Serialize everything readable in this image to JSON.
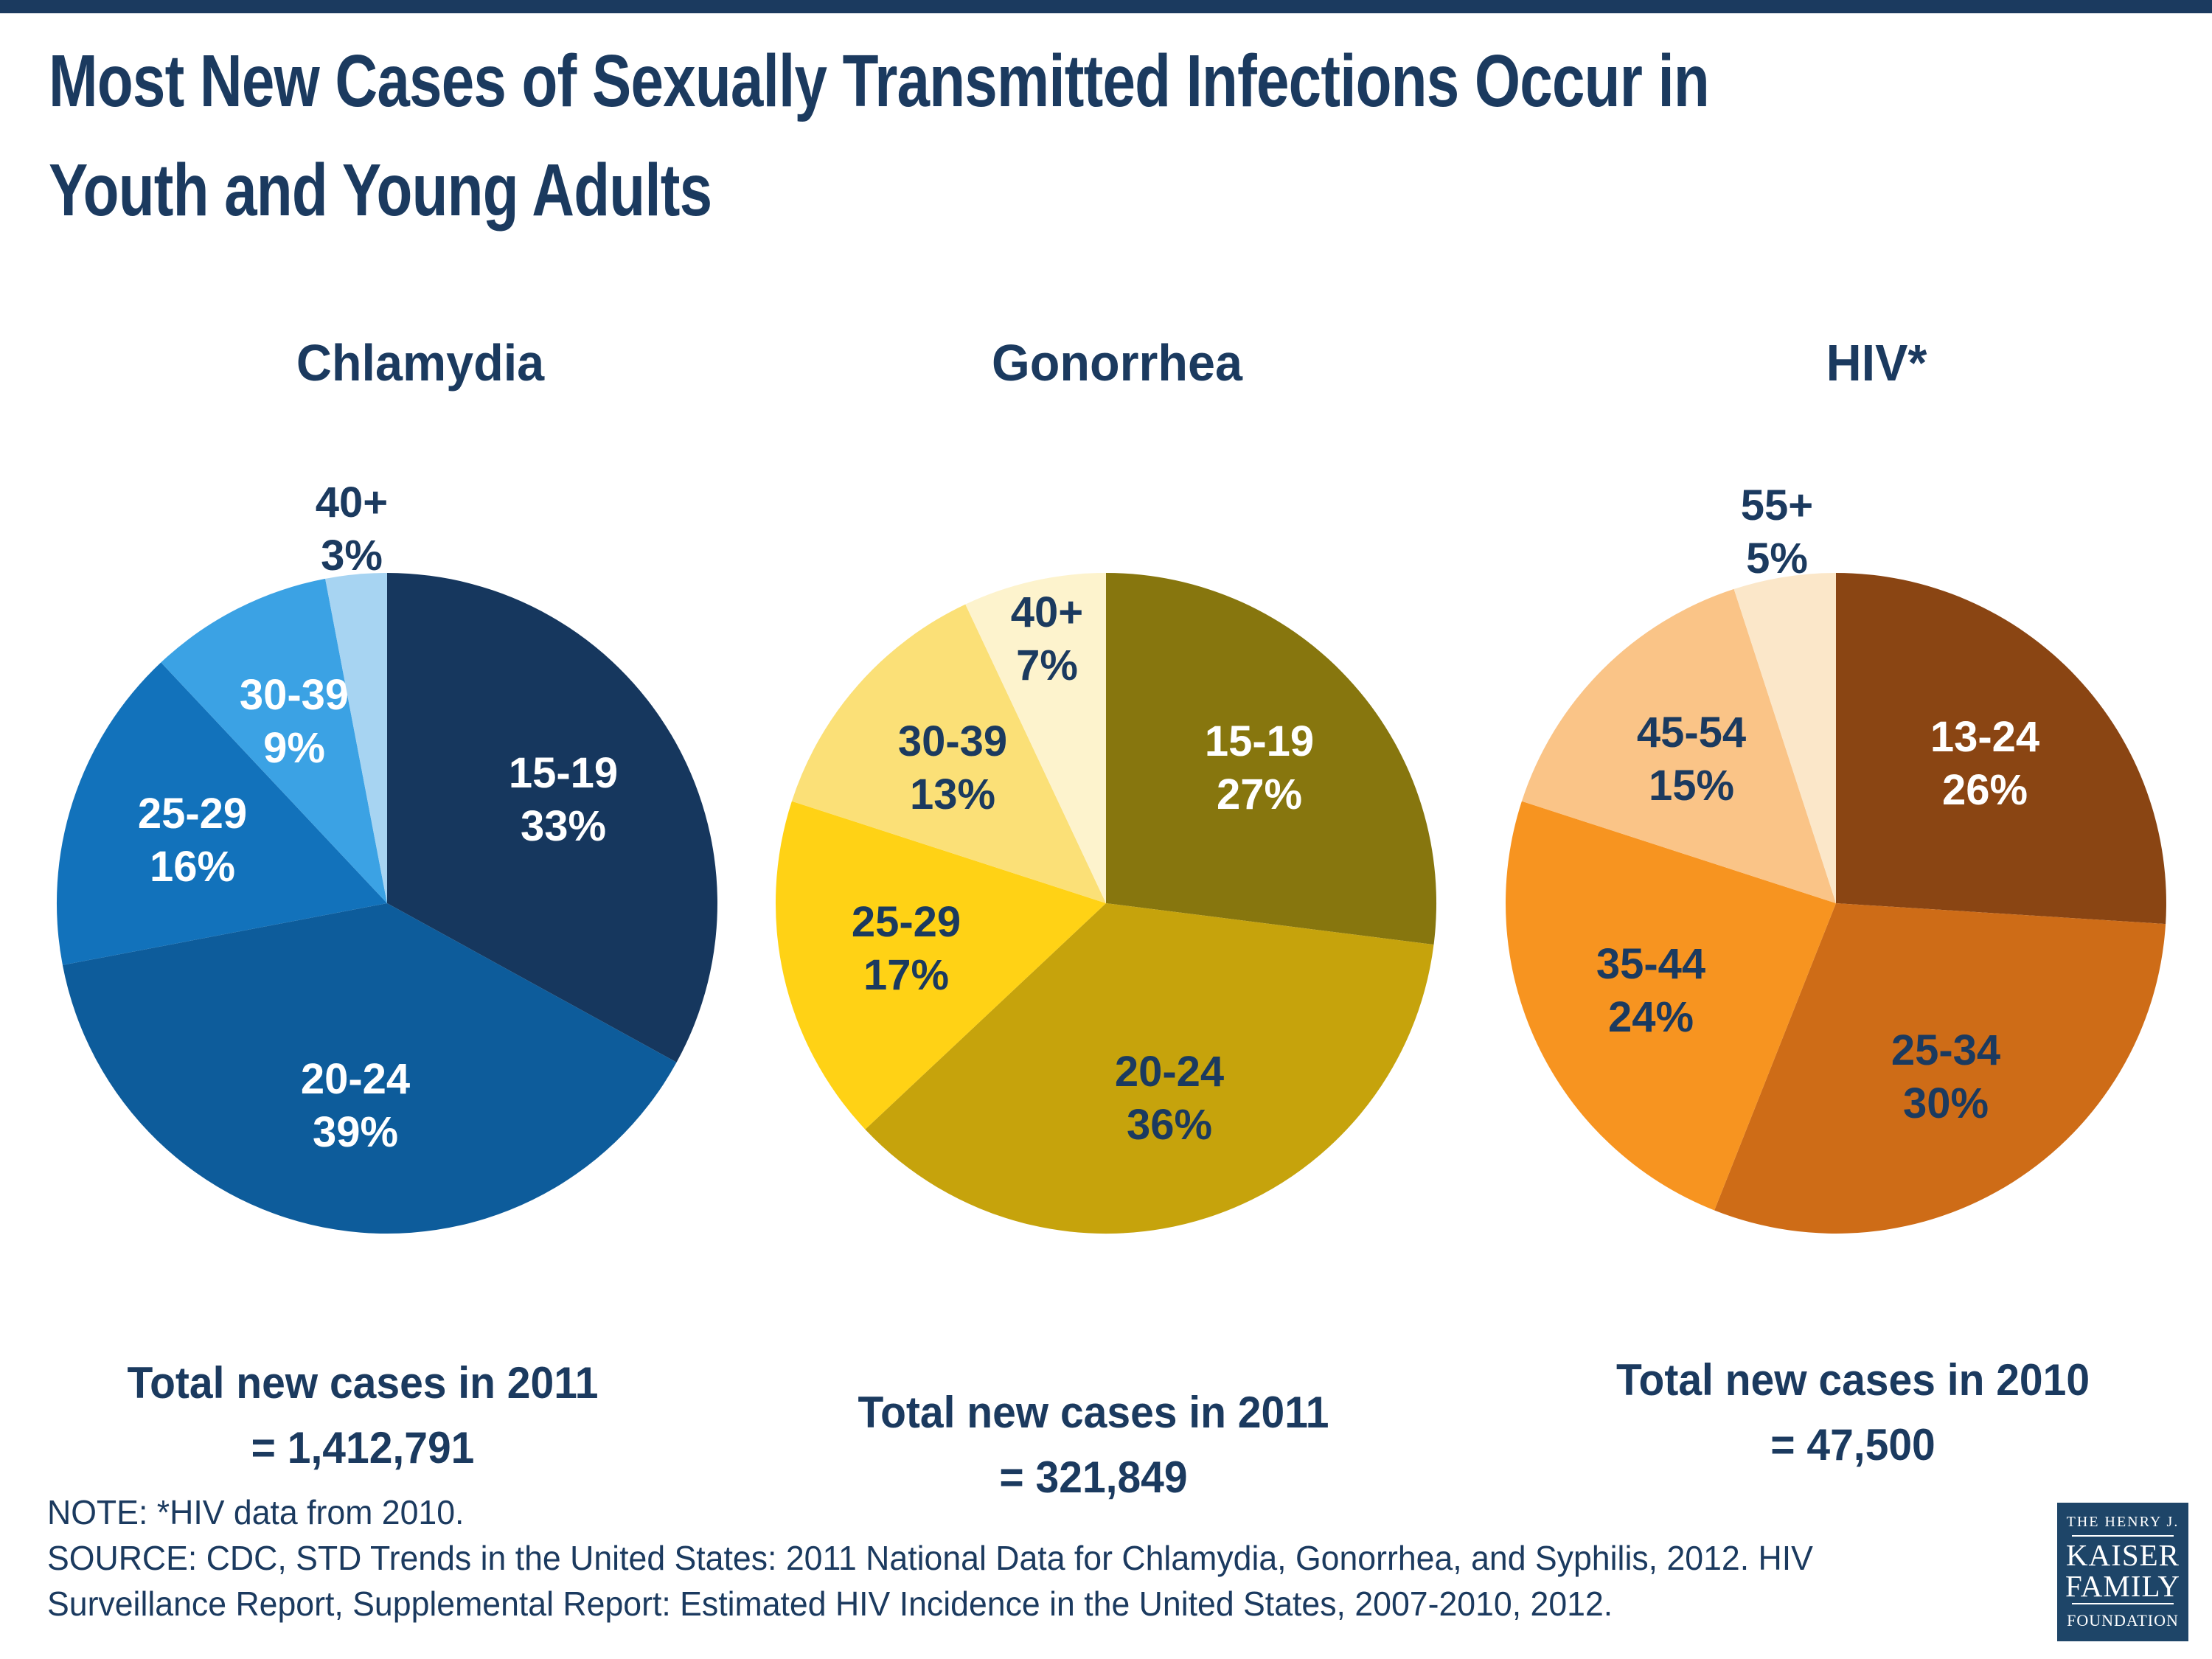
{
  "theme": {
    "background": "#FFFFFF",
    "text_navy": "#1B3A5F",
    "logo_navy": "#1E4568"
  },
  "title_lines": [
    "Most New Cases of Sexually Transmitted Infections Occur in",
    "Youth and Young Adults"
  ],
  "note": "NOTE: *HIV data from 2010.",
  "source_lines": [
    "SOURCE: CDC, STD Trends in the United States: 2011 National Data for Chlamydia, Gonorrhea, and Syphilis, 2012. HIV",
    "Surveillance Report, Supplemental Report: Estimated HIV Incidence in the United States, 2007-2010, 2012."
  ],
  "logo": {
    "line1": "THE HENRY J.",
    "line2": "KAISER",
    "line3": "FAMILY",
    "line4": "FOUNDATION"
  },
  "chart_data": [
    {
      "id": "chlamydia",
      "type": "pie",
      "title": "Chlamydia",
      "units": "percent",
      "start_angle_deg_from_12_oclock": 0,
      "direction": "clockwise",
      "total_line1": "Total new cases in 2011",
      "total_line2": "= 1,412,791",
      "slices": [
        {
          "label": "15-19",
          "value": 33,
          "color": "#16375E",
          "text_color": "#FFFFFF",
          "label_pos": "inside"
        },
        {
          "label": "20-24",
          "value": 39,
          "color": "#0D5C9B",
          "text_color": "#FFFFFF",
          "label_pos": "inside"
        },
        {
          "label": "25-29",
          "value": 16,
          "color": "#1272BB",
          "text_color": "#FFFFFF",
          "label_pos": "inside"
        },
        {
          "label": "30-39",
          "value": 9,
          "color": "#3BA2E4",
          "text_color": "#FFFFFF",
          "label_pos": "inside"
        },
        {
          "label": "40+",
          "value": 3,
          "color": "#A7D4F2",
          "text_color": "#1B3A5F",
          "label_pos": "outside"
        }
      ]
    },
    {
      "id": "gonorrhea",
      "type": "pie",
      "title": "Gonorrhea",
      "units": "percent",
      "start_angle_deg_from_12_oclock": 0,
      "direction": "clockwise",
      "total_line1": "Total new cases in 2011",
      "total_line2": "= 321,849",
      "slices": [
        {
          "label": "15-19",
          "value": 27,
          "color": "#87760E",
          "text_color": "#FFFFFF",
          "label_pos": "inside"
        },
        {
          "label": "20-24",
          "value": 36,
          "color": "#C6A30C",
          "text_color": "#1B3A5F",
          "label_pos": "inside"
        },
        {
          "label": "25-29",
          "value": 17,
          "color": "#FFD215",
          "text_color": "#1B3A5F",
          "label_pos": "inside"
        },
        {
          "label": "30-39",
          "value": 13,
          "color": "#FBE077",
          "text_color": "#1B3A5F",
          "label_pos": "inside"
        },
        {
          "label": "40+",
          "value": 7,
          "color": "#FDF3CD",
          "text_color": "#1B3A5F",
          "label_pos": "inside"
        }
      ]
    },
    {
      "id": "hiv",
      "type": "pie",
      "title": "HIV*",
      "units": "percent",
      "start_angle_deg_from_12_oclock": 0,
      "direction": "clockwise",
      "total_line1": "Total new cases in 2010",
      "total_line2": "= 47,500",
      "slices": [
        {
          "label": "13-24",
          "value": 26,
          "color": "#8A4513",
          "text_color": "#FFFFFF",
          "label_pos": "inside"
        },
        {
          "label": "25-34",
          "value": 30,
          "color": "#CE6C17",
          "text_color": "#1B3A5F",
          "label_pos": "inside"
        },
        {
          "label": "35-44",
          "value": 24,
          "color": "#F79420",
          "text_color": "#1B3A5F",
          "label_pos": "inside"
        },
        {
          "label": "45-54",
          "value": 15,
          "color": "#FAC487",
          "text_color": "#1B3A5F",
          "label_pos": "inside"
        },
        {
          "label": "55+",
          "value": 5,
          "color": "#FBE7C9",
          "text_color": "#1B3A5F",
          "label_pos": "outside"
        }
      ]
    }
  ]
}
